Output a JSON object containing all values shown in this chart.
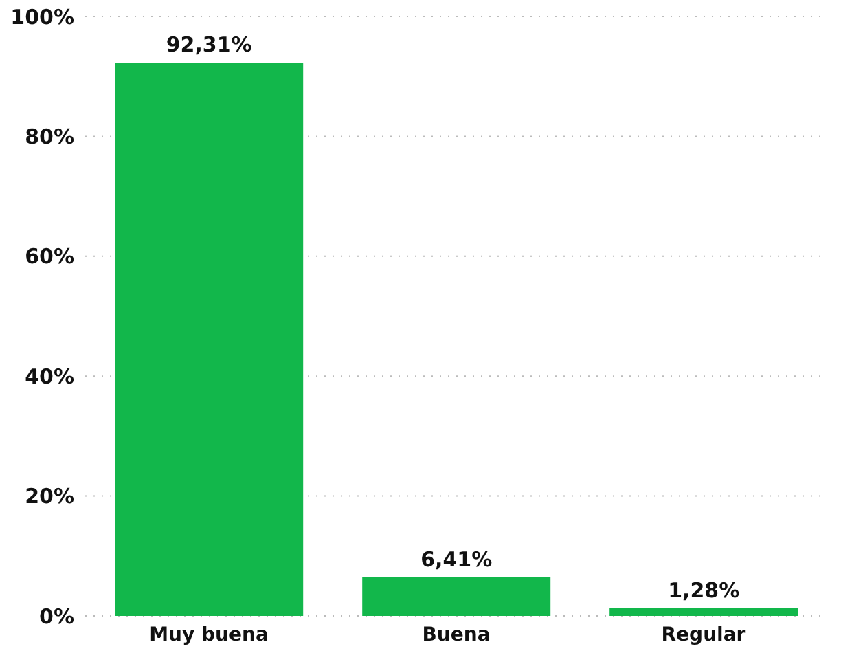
{
  "chart_data": {
    "type": "bar",
    "categories": [
      "Muy buena",
      "Buena",
      "Regular"
    ],
    "values": [
      92.31,
      6.41,
      1.28
    ],
    "value_labels": [
      "92,31%",
      "6,41%",
      "1,28%"
    ],
    "color": "#12b74b",
    "ylim": [
      0,
      100
    ],
    "yticks": [
      {
        "value": 0,
        "label": "0%"
      },
      {
        "value": 20,
        "label": "20%"
      },
      {
        "value": 40,
        "label": "40%"
      },
      {
        "value": 60,
        "label": "60%"
      },
      {
        "value": 80,
        "label": "80%"
      },
      {
        "value": 100,
        "label": "100%"
      }
    ],
    "grid": "y"
  }
}
